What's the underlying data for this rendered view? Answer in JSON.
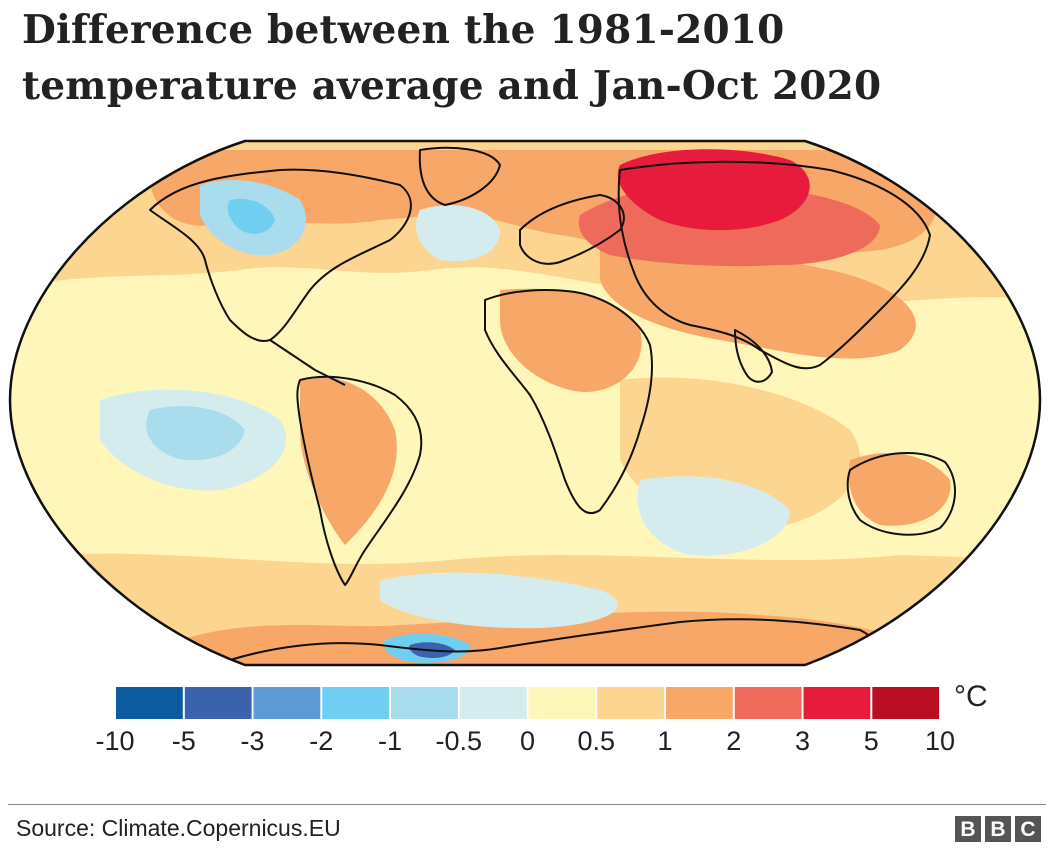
{
  "title_lines": [
    "Difference between the 1981-2010",
    "temperature average and Jan-Oct 2020"
  ],
  "legend": {
    "unit": "°C",
    "ticks": [
      "-10",
      "-5",
      "-3",
      "-2",
      "-1",
      "-0.5",
      "0",
      "0.5",
      "1",
      "2",
      "3",
      "5",
      "10"
    ],
    "colors": [
      "#0b5c9e",
      "#3b63ad",
      "#5d9ad6",
      "#70cff0",
      "#a9dced",
      "#d5ecef",
      "#fef7b9",
      "#fcd590",
      "#f7a868",
      "#ee6b5c",
      "#e71c3c",
      "#b90f24"
    ]
  },
  "map_colors": {
    "ocean_base": "#fef7b9",
    "warm": "#fcd590",
    "warmer": "#f7a868",
    "hot": "#ee6b5c",
    "hotter": "#e71c3c",
    "cool": "#d5ecef",
    "cooler": "#a9dced",
    "cold": "#70cff0",
    "colder": "#3b63ad",
    "coast": "#111111"
  },
  "source": "Source: Climate.Copernicus.EU",
  "logo_letters": [
    "B",
    "B",
    "C"
  ]
}
